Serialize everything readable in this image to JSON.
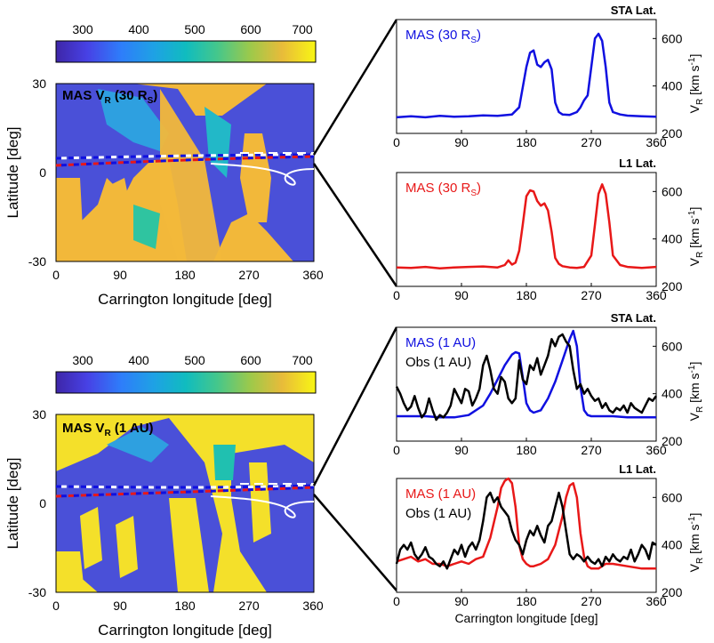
{
  "colorbar": {
    "ticks": [
      "300",
      "400",
      "500",
      "600",
      "700"
    ],
    "range": [
      250,
      710
    ]
  },
  "maps": [
    {
      "title": "MAS V",
      "title_sub": "R",
      "title_tail": " (30 R",
      "title_tail_sub": "S",
      "title_end": ")",
      "xlabel": "Carrington longitude [deg]",
      "ylabel": "Latitude [deg]",
      "xticks": [
        "0",
        "90",
        "180",
        "270",
        "360"
      ],
      "yticks": [
        "30",
        "0",
        "-30"
      ]
    },
    {
      "title": "MAS V",
      "title_sub": "R",
      "title_tail": " (1 AU)",
      "title_tail_sub": "",
      "title_end": "",
      "xlabel": "Carrington longitude [deg]",
      "ylabel": "Latitude [deg]",
      "xticks": [
        "0",
        "90",
        "180",
        "270",
        "360"
      ],
      "yticks": [
        "30",
        "0",
        "-30"
      ]
    }
  ],
  "panels": [
    {
      "title": "STA Lat.",
      "legend": [
        "MAS (30 R",
        "S",
        ")"
      ],
      "ylabel": "V",
      "ylabel_sub": "R",
      "ylabel_unit": " [km s",
      "ylabel_sup": "-1",
      "ylabel_end": "]",
      "xticks": [
        "0",
        "90",
        "180",
        "270",
        "360"
      ],
      "yticks": [
        "600",
        "400",
        "200"
      ]
    },
    {
      "title": "L1 Lat.",
      "legend": [
        "MAS (30 R",
        "S",
        ")"
      ],
      "ylabel": "V",
      "ylabel_sub": "R",
      "ylabel_unit": " [km s",
      "ylabel_sup": "-1",
      "ylabel_end": "]",
      "xticks": [
        "0",
        "90",
        "180",
        "270",
        "360"
      ],
      "yticks": [
        "600",
        "400",
        "200"
      ]
    },
    {
      "title": "STA Lat.",
      "legend": [
        "MAS (1 AU)",
        "Obs (1 AU)"
      ],
      "ylabel": "V",
      "ylabel_sub": "R",
      "ylabel_unit": " [km s",
      "ylabel_sup": "-1",
      "ylabel_end": "]",
      "xticks": [
        "0",
        "90",
        "180",
        "270",
        "360"
      ],
      "yticks": [
        "600",
        "400",
        "200"
      ]
    },
    {
      "title": "L1 Lat.",
      "legend": [
        "MAS (1 AU)",
        "Obs (1 AU)"
      ],
      "ylabel": "V",
      "ylabel_sub": "R",
      "ylabel_unit": " [km s",
      "ylabel_sup": "-1",
      "ylabel_end": "]",
      "xticks": [
        "0",
        "90",
        "180",
        "270",
        "360"
      ],
      "yticks": [
        "600",
        "400",
        "200"
      ],
      "xlabel": "Carrington longitude [deg]"
    }
  ],
  "colors": {
    "sta": "#1010e0",
    "l1": "#e81818",
    "obs": "#000000",
    "white": "#ffffff"
  },
  "chart_data": [
    {
      "type": "heatmap",
      "xlim": [
        0,
        360
      ],
      "ylim": [
        -30,
        30
      ],
      "colormap": "parula",
      "clim": [
        250,
        710
      ]
    },
    {
      "type": "line",
      "ylim": [
        200,
        680
      ],
      "xlim": [
        0,
        360
      ],
      "series": [
        {
          "name": "MAS (30 RS)",
          "color": "#1010e0",
          "x": [
            0,
            20,
            40,
            60,
            80,
            100,
            120,
            140,
            160,
            170,
            180,
            185,
            190,
            195,
            200,
            205,
            210,
            215,
            220,
            225,
            230,
            240,
            250,
            255,
            260,
            265,
            270,
            275,
            280,
            285,
            290,
            295,
            300,
            310,
            320,
            340,
            360
          ],
          "y": [
            268,
            272,
            268,
            274,
            270,
            272,
            276,
            274,
            280,
            310,
            480,
            540,
            550,
            490,
            480,
            500,
            510,
            470,
            330,
            290,
            280,
            278,
            290,
            310,
            340,
            360,
            480,
            600,
            620,
            590,
            480,
            330,
            290,
            280,
            275,
            272,
            270
          ]
        }
      ]
    },
    {
      "type": "line",
      "ylim": [
        200,
        680
      ],
      "xlim": [
        0,
        360
      ],
      "series": [
        {
          "name": "MAS (30 RS)",
          "color": "#e81818",
          "x": [
            0,
            20,
            40,
            60,
            80,
            100,
            120,
            140,
            150,
            155,
            160,
            165,
            170,
            175,
            180,
            185,
            190,
            195,
            200,
            205,
            210,
            215,
            220,
            225,
            230,
            240,
            250,
            260,
            270,
            275,
            280,
            285,
            290,
            295,
            300,
            310,
            320,
            340,
            360
          ],
          "y": [
            280,
            278,
            282,
            276,
            280,
            282,
            284,
            280,
            290,
            310,
            292,
            300,
            350,
            460,
            580,
            605,
            600,
            560,
            540,
            550,
            520,
            430,
            320,
            295,
            285,
            280,
            278,
            282,
            330,
            460,
            590,
            630,
            590,
            470,
            330,
            290,
            282,
            278,
            282
          ]
        }
      ]
    },
    {
      "type": "line",
      "ylim": [
        200,
        680
      ],
      "xlim": [
        0,
        360
      ],
      "series": [
        {
          "name": "MAS (1 AU)",
          "color": "#1010e0",
          "x": [
            0,
            20,
            40,
            60,
            80,
            100,
            120,
            130,
            140,
            150,
            160,
            165,
            170,
            175,
            180,
            185,
            190,
            200,
            210,
            220,
            230,
            240,
            245,
            250,
            255,
            260,
            265,
            270,
            280,
            300,
            320,
            340,
            360
          ],
          "y": [
            305,
            305,
            305,
            300,
            300,
            310,
            350,
            400,
            460,
            520,
            565,
            575,
            570,
            470,
            360,
            330,
            320,
            330,
            380,
            450,
            540,
            630,
            665,
            600,
            430,
            330,
            310,
            305,
            305,
            305,
            300,
            300,
            300
          ]
        },
        {
          "name": "Obs (1 AU)",
          "color": "#000000",
          "x": [
            0,
            5,
            10,
            15,
            20,
            25,
            30,
            35,
            40,
            45,
            50,
            55,
            60,
            65,
            70,
            75,
            80,
            85,
            90,
            95,
            100,
            105,
            110,
            115,
            120,
            125,
            130,
            135,
            140,
            145,
            150,
            155,
            160,
            165,
            170,
            175,
            180,
            185,
            190,
            195,
            200,
            205,
            210,
            215,
            220,
            225,
            230,
            235,
            240,
            245,
            250,
            255,
            260,
            265,
            270,
            275,
            280,
            285,
            290,
            295,
            300,
            305,
            310,
            315,
            320,
            325,
            330,
            335,
            340,
            345,
            350,
            355,
            360
          ],
          "y": [
            430,
            400,
            360,
            330,
            345,
            390,
            340,
            300,
            320,
            380,
            330,
            290,
            310,
            300,
            320,
            350,
            420,
            390,
            360,
            420,
            410,
            350,
            380,
            420,
            520,
            560,
            500,
            420,
            400,
            470,
            450,
            380,
            360,
            380,
            540,
            460,
            440,
            520,
            500,
            550,
            480,
            520,
            560,
            630,
            600,
            640,
            650,
            620,
            600,
            500,
            420,
            440,
            400,
            420,
            390,
            370,
            380,
            340,
            360,
            330,
            320,
            340,
            330,
            350,
            320,
            360,
            340,
            330,
            320,
            350,
            380,
            370,
            390
          ]
        }
      ]
    },
    {
      "type": "line",
      "ylim": [
        200,
        680
      ],
      "xlim": [
        0,
        360
      ],
      "xlabel": "Carrington longitude [deg]",
      "series": [
        {
          "name": "MAS (1 AU)",
          "color": "#e81818",
          "x": [
            0,
            10,
            20,
            30,
            40,
            50,
            60,
            70,
            80,
            90,
            100,
            110,
            120,
            130,
            140,
            145,
            150,
            155,
            160,
            165,
            170,
            175,
            180,
            185,
            190,
            200,
            210,
            220,
            230,
            235,
            240,
            245,
            250,
            255,
            260,
            265,
            270,
            280,
            290,
            300,
            320,
            340,
            360
          ],
          "y": [
            330,
            340,
            350,
            330,
            340,
            320,
            320,
            310,
            320,
            330,
            320,
            340,
            350,
            430,
            560,
            640,
            670,
            680,
            660,
            560,
            400,
            340,
            320,
            310,
            310,
            320,
            340,
            400,
            520,
            600,
            650,
            660,
            600,
            450,
            350,
            310,
            300,
            300,
            320,
            320,
            310,
            300,
            300
          ]
        },
        {
          "name": "Obs (1 AU)",
          "color": "#000000",
          "x": [
            0,
            5,
            10,
            15,
            20,
            25,
            30,
            35,
            40,
            45,
            50,
            55,
            60,
            65,
            70,
            75,
            80,
            85,
            90,
            95,
            100,
            105,
            110,
            115,
            120,
            125,
            130,
            135,
            140,
            145,
            150,
            155,
            160,
            165,
            170,
            175,
            180,
            185,
            190,
            195,
            200,
            205,
            210,
            215,
            220,
            225,
            230,
            235,
            240,
            245,
            250,
            255,
            260,
            265,
            270,
            275,
            280,
            285,
            290,
            295,
            300,
            305,
            310,
            315,
            320,
            325,
            330,
            335,
            340,
            345,
            350,
            355,
            360
          ],
          "y": [
            320,
            380,
            400,
            380,
            410,
            360,
            340,
            360,
            390,
            350,
            340,
            320,
            310,
            330,
            300,
            340,
            380,
            360,
            400,
            350,
            390,
            410,
            380,
            420,
            500,
            600,
            620,
            580,
            600,
            560,
            540,
            520,
            460,
            420,
            400,
            360,
            420,
            460,
            440,
            480,
            440,
            410,
            480,
            500,
            560,
            620,
            560,
            460,
            360,
            340,
            360,
            350,
            330,
            350,
            330,
            320,
            340,
            310,
            350,
            330,
            360,
            340,
            330,
            350,
            340,
            380,
            330,
            360,
            400,
            380,
            340,
            410,
            400
          ]
        }
      ]
    }
  ]
}
